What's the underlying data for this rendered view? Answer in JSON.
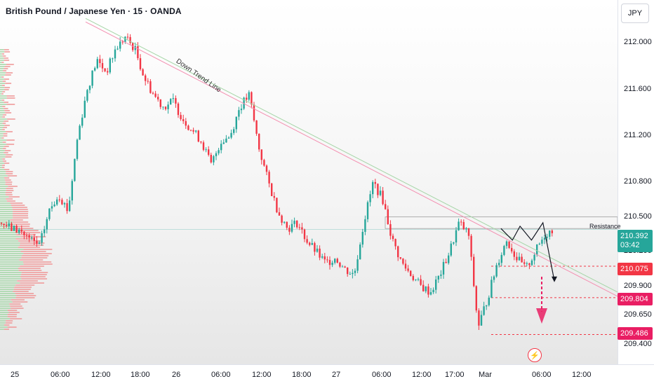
{
  "header": {
    "title": "British Pound / Japanese Yen · 15 · OANDA",
    "currency_button": "JPY"
  },
  "annotations": {
    "resistance_label": "Resistance",
    "trend_line_label": "Down Trend Line"
  },
  "price_flags": {
    "current_price": "210.392",
    "countdown": "03:42",
    "level_1": "210.075",
    "level_2": "209.804",
    "level_3": "209.486"
  },
  "colors": {
    "up": "#26a69a",
    "down": "#f23645",
    "accent": "#e91e63",
    "trend_line": "#f48fb1",
    "trend_line_2": "#a5d6a7"
  },
  "icons": {
    "lightning": "lightning-icon"
  },
  "chart_data": {
    "type": "candlestick",
    "title": "British Pound / Japanese Yen · 15 · OANDA",
    "y_axis_ticks": [
      "212.000",
      "211.600",
      "211.200",
      "210.800",
      "210.500",
      "210.200",
      "209.900",
      "209.650",
      "209.400"
    ],
    "x_axis_ticks": [
      "25",
      "06:00",
      "12:00",
      "18:00",
      "26",
      "06:00",
      "12:00",
      "18:00",
      "27",
      "06:00",
      "12:00",
      "17:00",
      "Mar",
      "06:00",
      "12:00"
    ],
    "ylim": [
      209.35,
      212.25
    ],
    "price_path": [
      [
        0,
        210.45
      ],
      [
        5,
        210.4
      ],
      [
        10,
        210.38
      ],
      [
        15,
        210.3
      ],
      [
        20,
        210.25
      ],
      [
        25,
        210.55
      ],
      [
        30,
        210.7
      ],
      [
        35,
        210.55
      ],
      [
        40,
        211.2
      ],
      [
        45,
        211.6
      ],
      [
        50,
        211.85
      ],
      [
        55,
        211.75
      ],
      [
        60,
        211.95
      ],
      [
        65,
        212.05
      ],
      [
        70,
        211.95
      ],
      [
        75,
        211.7
      ],
      [
        80,
        211.55
      ],
      [
        85,
        211.45
      ],
      [
        90,
        211.5
      ],
      [
        95,
        211.35
      ],
      [
        100,
        211.25
      ],
      [
        105,
        211.15
      ],
      [
        110,
        210.95
      ],
      [
        115,
        211.15
      ],
      [
        120,
        211.2
      ],
      [
        125,
        211.45
      ],
      [
        130,
        211.55
      ],
      [
        135,
        211.1
      ],
      [
        140,
        210.8
      ],
      [
        145,
        210.55
      ],
      [
        150,
        210.4
      ],
      [
        155,
        210.45
      ],
      [
        160,
        210.3
      ],
      [
        165,
        210.2
      ],
      [
        170,
        210.1
      ],
      [
        175,
        210.15
      ],
      [
        180,
        210.05
      ],
      [
        185,
        210.0
      ],
      [
        190,
        210.45
      ],
      [
        195,
        210.8
      ],
      [
        200,
        210.65
      ],
      [
        205,
        210.3
      ],
      [
        210,
        210.1
      ],
      [
        215,
        210.0
      ],
      [
        220,
        209.9
      ],
      [
        225,
        209.85
      ],
      [
        230,
        210.0
      ],
      [
        235,
        210.2
      ],
      [
        240,
        210.45
      ],
      [
        245,
        210.35
      ],
      [
        250,
        209.55
      ],
      [
        255,
        209.8
      ],
      [
        260,
        210.1
      ],
      [
        265,
        210.3
      ],
      [
        270,
        210.15
      ],
      [
        275,
        210.05
      ],
      [
        280,
        210.2
      ],
      [
        285,
        210.35
      ],
      [
        290,
        210.4
      ]
    ],
    "resistance_zone": [
      210.4,
      210.5
    ],
    "horizontal_levels": [
      210.075,
      209.804,
      209.486
    ],
    "down_trend_line": [
      [
        0,
        212.2
      ],
      [
        290,
        209.9
      ]
    ],
    "projected_path": [
      [
        262,
        210.4
      ],
      [
        268,
        210.3
      ],
      [
        272,
        210.42
      ],
      [
        278,
        210.3
      ],
      [
        284,
        210.45
      ],
      [
        290,
        209.95
      ]
    ],
    "volume_profile": "left-side horizontal histogram (green/red)"
  }
}
